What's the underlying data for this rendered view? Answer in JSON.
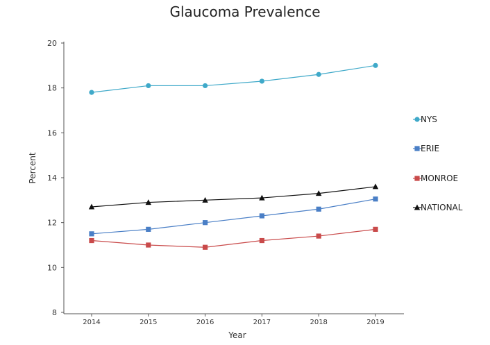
{
  "chart_data": {
    "type": "line",
    "title": "Glaucoma Prevalence",
    "xlabel": "Year",
    "ylabel": "Percent",
    "x": [
      "2014",
      "2015",
      "2016",
      "2017",
      "2018",
      "2019"
    ],
    "yticks": [
      "8",
      "10",
      "12",
      "14",
      "16",
      "18",
      "20"
    ],
    "ylim": [
      8,
      20
    ],
    "grid": false,
    "legend_position": "right",
    "series": [
      {
        "name": "NYS",
        "color": "#3fa9c9",
        "marker": "circle",
        "values": [
          17.8,
          18.1,
          18.1,
          18.3,
          18.6,
          19.0
        ]
      },
      {
        "name": "ERIE",
        "color": "#4a7fc6",
        "marker": "square",
        "values": [
          11.5,
          11.7,
          12.0,
          12.3,
          12.6,
          13.05
        ]
      },
      {
        "name": "MONROE",
        "color": "#c94a4a",
        "marker": "square",
        "values": [
          11.2,
          11.0,
          10.9,
          11.2,
          11.4,
          11.7
        ]
      },
      {
        "name": "NATIONAL",
        "color": "#111111",
        "marker": "triangle",
        "values": [
          12.7,
          12.9,
          13.0,
          13.1,
          13.3,
          13.6
        ]
      }
    ]
  }
}
